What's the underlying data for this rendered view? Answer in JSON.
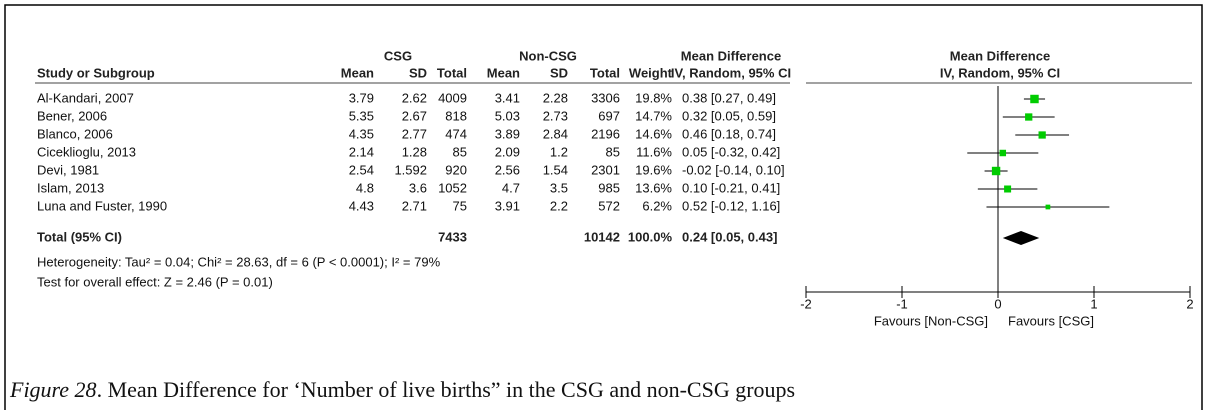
{
  "chart_data": {
    "type": "forest",
    "group_headers": [
      "CSG",
      "Non-CSG"
    ],
    "effect_header": "Mean Difference",
    "method_header": "IV, Random, 95% CI",
    "columns": [
      "Study or Subgroup",
      "Mean",
      "SD",
      "Total",
      "Mean",
      "SD",
      "Total",
      "Weight"
    ],
    "studies": [
      {
        "name": "Al-Kandari, 2007",
        "csg_mean": 3.79,
        "csg_sd": 2.62,
        "csg_total": 4009,
        "non_mean": 3.41,
        "non_sd": 2.28,
        "non_total": 3306,
        "weight": 19.8,
        "weight_label": "19.8%",
        "md": 0.38,
        "lo": 0.27,
        "hi": 0.49,
        "ci_label": "0.38 [0.27, 0.49]"
      },
      {
        "name": "Bener, 2006",
        "csg_mean": 5.35,
        "csg_sd": 2.67,
        "csg_total": 818,
        "non_mean": 5.03,
        "non_sd": 2.73,
        "non_total": 697,
        "weight": 14.7,
        "weight_label": "14.7%",
        "md": 0.32,
        "lo": 0.05,
        "hi": 0.59,
        "ci_label": "0.32 [0.05, 0.59]"
      },
      {
        "name": "Blanco, 2006",
        "csg_mean": 4.35,
        "csg_sd": 2.77,
        "csg_total": 474,
        "non_mean": 3.89,
        "non_sd": 2.84,
        "non_total": 2196,
        "weight": 14.6,
        "weight_label": "14.6%",
        "md": 0.46,
        "lo": 0.18,
        "hi": 0.74,
        "ci_label": "0.46 [0.18, 0.74]"
      },
      {
        "name": "Ciceklioglu, 2013",
        "csg_mean": 2.14,
        "csg_sd": 1.28,
        "csg_total": 85,
        "non_mean": 2.09,
        "non_sd": 1.2,
        "non_total": 85,
        "weight": 11.6,
        "weight_label": "11.6%",
        "md": 0.05,
        "lo": -0.32,
        "hi": 0.42,
        "ci_label": "0.05 [-0.32, 0.42]"
      },
      {
        "name": "Devi, 1981",
        "csg_mean": 2.54,
        "csg_sd": 1.592,
        "csg_total": 920,
        "non_mean": 2.56,
        "non_sd": 1.54,
        "non_total": 2301,
        "weight": 19.6,
        "weight_label": "19.6%",
        "md": -0.02,
        "lo": -0.14,
        "hi": 0.1,
        "ci_label": "-0.02 [-0.14, 0.10]"
      },
      {
        "name": "Islam, 2013",
        "csg_mean": 4.8,
        "csg_sd": 3.6,
        "csg_total": 1052,
        "non_mean": 4.7,
        "non_sd": 3.5,
        "non_total": 985,
        "weight": 13.6,
        "weight_label": "13.6%",
        "md": 0.1,
        "lo": -0.21,
        "hi": 0.41,
        "ci_label": "0.10 [-0.21, 0.41]"
      },
      {
        "name": "Luna and Fuster, 1990",
        "csg_mean": 4.43,
        "csg_sd": 2.71,
        "csg_total": 75,
        "non_mean": 3.91,
        "non_sd": 2.2,
        "non_total": 572,
        "weight": 6.2,
        "weight_label": "6.2%",
        "md": 0.52,
        "lo": -0.12,
        "hi": 1.16,
        "ci_label": "0.52 [-0.12, 1.16]"
      }
    ],
    "total": {
      "label": "Total (95% CI)",
      "csg_total": 7433,
      "non_total": 10142,
      "weight_label": "100.0%",
      "md": 0.24,
      "lo": 0.05,
      "hi": 0.43,
      "ci_label": "0.24 [0.05, 0.43]"
    },
    "heterogeneity": "Heterogeneity: Tau² = 0.04; Chi² = 28.63, df = 6 (P < 0.0001); I² = 79%",
    "overall_effect": "Test for overall effect: Z = 2.46 (P = 0.01)",
    "xlim": [
      -2,
      2
    ],
    "xticks": [
      -2,
      -1,
      0,
      1,
      2
    ],
    "favours_left": "Favours [Non-CSG]",
    "favours_right": "Favours [CSG]",
    "square_color": "#00cc00",
    "diamond_color": "#000000"
  },
  "caption": {
    "figure": "Figure 28",
    "text": ". Mean Difference for ‘Number of live births” in the CSG and non-CSG groups"
  }
}
